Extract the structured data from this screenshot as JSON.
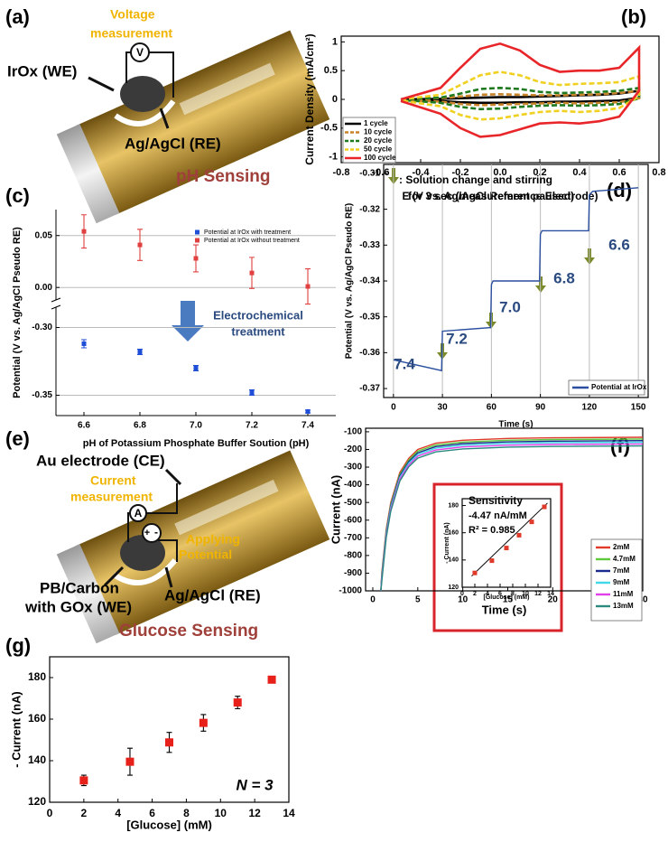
{
  "illustrations": [
    {
      "panel_label": "(a)",
      "measurement": [
        "Voltage",
        "measurement"
      ],
      "meter": "V",
      "working_electrode": "IrOx (WE)",
      "reference_electrode": "Ag/AgCl (RE)",
      "caption": "pH Sensing"
    },
    {
      "panel_label": "(e)",
      "counter_electrode": "Au electrode (CE)",
      "measurement": [
        "Current",
        "measurement"
      ],
      "meter": "A",
      "source": [
        "+",
        "-"
      ],
      "potential": [
        "Applying",
        "Potential"
      ],
      "working_electrode": [
        "PB/Carbon",
        "with GOx (WE)"
      ],
      "reference_electrode": "Ag/AgCl (RE)",
      "caption": "Glucose Sensing"
    }
  ],
  "chart_data": [
    {
      "panel_label": "(b)",
      "type": "line",
      "xlabel": "E (V vs. Ag/AgCl Reference Electrode)",
      "ylabel": "Current Density (mA/cm²)",
      "xlim": [
        -0.8,
        0.8
      ],
      "ylim": [
        -1.1,
        1.1
      ],
      "xticks": [
        -0.8,
        -0.6,
        -0.4,
        -0.2,
        {
          "value": 0,
          "label": "0.0"
        },
        0.2,
        0.4,
        0.6,
        0.8
      ],
      "yticks": [
        -1,
        -0.5,
        0,
        0.5,
        1
      ],
      "legend": "lower left",
      "x": [
        -0.5,
        -0.3,
        -0.2,
        -0.1,
        0,
        0.1,
        0.2,
        0.3,
        0.4,
        0.5,
        0.6,
        0.7,
        0.7,
        0.6,
        0.5,
        0.4,
        0.3,
        0.2,
        0.1,
        0,
        -0.1,
        -0.2,
        -0.3,
        -0.5
      ],
      "series": [
        {
          "name": "1 cycle",
          "color": "#000000",
          "dash": false,
          "values": [
            0,
            0.01,
            0.02,
            0.03,
            0.04,
            0.04,
            0.05,
            0.06,
            0.07,
            0.08,
            0.1,
            0.15,
            0.03,
            -0.02,
            -0.03,
            -0.04,
            -0.04,
            -0.05,
            -0.05,
            -0.06,
            -0.06,
            -0.05,
            -0.03,
            -0.01
          ]
        },
        {
          "name": "10 cycle",
          "color": "#c8842a",
          "dash": true,
          "values": [
            0,
            0.02,
            0.05,
            0.08,
            0.09,
            0.08,
            0.07,
            0.07,
            0.08,
            0.09,
            0.11,
            0.15,
            0.02,
            -0.05,
            -0.06,
            -0.07,
            -0.06,
            -0.07,
            -0.08,
            -0.09,
            -0.1,
            -0.08,
            -0.04,
            -0.01
          ]
        },
        {
          "name": "20 cycle",
          "color": "#1f7a1f",
          "dash": true,
          "values": [
            0,
            0.03,
            0.1,
            0.18,
            0.2,
            0.18,
            0.13,
            0.11,
            0.12,
            0.13,
            0.15,
            0.2,
            0.02,
            -0.08,
            -0.1,
            -0.11,
            -0.1,
            -0.11,
            -0.13,
            -0.16,
            -0.17,
            -0.13,
            -0.06,
            -0.01
          ]
        },
        {
          "name": "50 cycle",
          "color": "#f0d020",
          "dash": true,
          "values": [
            0,
            0.08,
            0.25,
            0.42,
            0.48,
            0.42,
            0.3,
            0.25,
            0.27,
            0.28,
            0.3,
            0.4,
            0.05,
            -0.15,
            -0.2,
            -0.22,
            -0.2,
            -0.22,
            -0.27,
            -0.33,
            -0.35,
            -0.27,
            -0.12,
            -0.02
          ]
        },
        {
          "name": "100 cycle",
          "color": "#e8262a",
          "dash": false,
          "values": [
            0,
            0.2,
            0.55,
            0.88,
            0.97,
            0.85,
            0.6,
            0.48,
            0.5,
            0.5,
            0.55,
            0.9,
            0.15,
            -0.3,
            -0.38,
            -0.42,
            -0.4,
            -0.42,
            -0.52,
            -0.62,
            -0.65,
            -0.5,
            -0.25,
            -0.03
          ]
        }
      ]
    },
    {
      "panel_label": "(c)",
      "type": "errorbar",
      "xlabel": "pH of Potassium Phosphate Buffer Soution (pH)",
      "ylabel": "Potential (V vs. Ag/AgCl Pseudo RE)",
      "xlim": [
        6.5,
        7.5
      ],
      "xticks": [
        6.6,
        6.8,
        {
          "value": 7,
          "label": "7.0"
        },
        7.2,
        7.4
      ],
      "ylim": [
        -0.365,
        -0.285
      ],
      "yticks": [
        -0.35,
        {
          "value": -0.3,
          "label": "-0.30"
        }
      ],
      "ylim_top": [
        -0.012,
        0.075
      ],
      "yticks_top": [
        {
          "value": 0,
          "label": "0.00"
        },
        0.05
      ],
      "grid": true,
      "legend": "upper right",
      "x": [
        6.6,
        6.8,
        7,
        7.2,
        7.4
      ],
      "series": [
        {
          "name": "Potential at IrOx with treatment",
          "color": "#1f4fd6",
          "values": [
            -0.312,
            -0.318,
            -0.33,
            -0.348,
            -0.362
          ],
          "errors": [
            0.003,
            0.002,
            0.002,
            0.002,
            0.001
          ]
        },
        {
          "name": "Potential at IrOx without treatment",
          "color": "#e04040",
          "values": [
            0.054,
            0.041,
            0.028,
            0.014,
            0.001
          ],
          "errors": [
            0.016,
            0.015,
            0.013,
            0.015,
            0.017
          ]
        }
      ],
      "annotation": [
        "Electrochemical",
        "treatment"
      ]
    },
    {
      "panel_label": "(d)",
      "type": "line",
      "xlabel": "Time (s)",
      "ylabel": "Potential (V vs. Ag/AgCl Pseudo RE)",
      "xlim": [
        -6,
        156
      ],
      "ylim": [
        -0.3725,
        -0.3075
      ],
      "xticks": [
        0,
        30,
        60,
        90,
        120,
        150
      ],
      "yticks": [
        -0.37,
        -0.36,
        -0.35,
        -0.34,
        -0.33,
        -0.32,
        -0.31
      ],
      "grid": "x",
      "legend": "lower right",
      "x": [
        0,
        29.5,
        30,
        59.5,
        60,
        61,
        89.5,
        90,
        91,
        119.5,
        120,
        122,
        150
      ],
      "series": [
        {
          "name": "Potential at IrOx",
          "color": "#2b4fa0",
          "dash": false,
          "values": [
            -0.362,
            -0.365,
            -0.354,
            -0.353,
            -0.341,
            -0.34,
            -0.34,
            -0.327,
            -0.326,
            -0.326,
            -0.316,
            -0.315,
            -0.314
          ]
        }
      ],
      "annotation": {
        "note": [
          ": Solution change and stirring",
          "for 3 sec (measurement paused)"
        ],
        "steps": [
          "7.4",
          "7.2",
          "7.0",
          "6.8",
          "6.6"
        ]
      }
    },
    {
      "panel_label": "(f)",
      "type": "line",
      "xlabel": "Time (s)",
      "ylabel": "Current (nA)",
      "xlim": [
        -0.8,
        30
      ],
      "ylim": [
        -1000,
        -80
      ],
      "xticks": [
        0,
        5,
        10,
        15,
        20,
        25,
        30
      ],
      "yticks": [
        -1000,
        -900,
        -800,
        -700,
        -600,
        -500,
        -400,
        -300,
        -200,
        -100
      ],
      "legend": "right",
      "x": [
        0.9,
        1,
        1.5,
        2,
        3,
        4,
        5,
        7,
        10,
        15,
        20,
        30
      ],
      "series": [
        {
          "name": "2mM",
          "color": "#e03a2a",
          "dash": false,
          "values": [
            -1000,
            -900,
            -650,
            -500,
            -330,
            -250,
            -200,
            -165,
            -148,
            -138,
            -134,
            -131
          ]
        },
        {
          "name": "4.7mM",
          "color": "#5fc83c",
          "dash": false,
          "values": [
            -1000,
            -910,
            -660,
            -510,
            -340,
            -260,
            -210,
            -175,
            -158,
            -148,
            -144,
            -141
          ]
        },
        {
          "name": "7mM",
          "color": "#1a2a8a",
          "dash": false,
          "values": [
            -1000,
            -919,
            -669,
            -519,
            -349,
            -269,
            -219,
            -184,
            -167,
            -157,
            -153,
            -150
          ]
        },
        {
          "name": "9mM",
          "color": "#40d8e8",
          "dash": false,
          "values": [
            -1000,
            -928,
            -678,
            -528,
            -358,
            -278,
            -228,
            -193,
            -176,
            -166,
            -162,
            -159
          ]
        },
        {
          "name": "11mM",
          "color": "#e040e8",
          "dash": false,
          "values": [
            -1000,
            -938,
            -688,
            -538,
            -368,
            -288,
            -238,
            -203,
            -186,
            -176,
            -172,
            -169
          ]
        },
        {
          "name": "13mM",
          "color": "#2a8a80",
          "dash": false,
          "values": [
            -1000,
            -949,
            -699,
            -549,
            -379,
            -299,
            -249,
            -214,
            -197,
            -187,
            -183,
            -180
          ]
        }
      ]
    },
    {
      "type": "scatter",
      "xlabel": "[Glucose] (mM)",
      "ylabel": "- Current (nA)",
      "xlim": [
        0,
        14
      ],
      "ylim": [
        120,
        185
      ],
      "xticks": [
        0,
        2,
        4,
        6,
        8,
        10,
        12,
        14
      ],
      "yticks": [
        120,
        140,
        160,
        180
      ],
      "color": "#e03a2a",
      "x": [
        2,
        4.7,
        7,
        9,
        11,
        13
      ],
      "values": [
        130.5,
        139.5,
        148.8,
        158.2,
        168,
        179
      ],
      "fit": {
        "x": [
          1.5,
          13.5
        ],
        "values": [
          128.2,
          181.8
        ]
      },
      "annotation": [
        "Sensitivity",
        "-4.47 nA/mM",
        "R² = 0.985"
      ]
    },
    {
      "panel_label": "(g)",
      "type": "errorbar",
      "xlabel": "[Glucose] (mM)",
      "ylabel": "- Current (nA)",
      "xlim": [
        0,
        14
      ],
      "ylim": [
        120,
        190
      ],
      "xticks": [
        0,
        2,
        4,
        6,
        8,
        10,
        12,
        14
      ],
      "yticks": [
        120,
        140,
        160,
        180
      ],
      "color": "#e8201a",
      "x": [
        2,
        4.7,
        7,
        9,
        11,
        13
      ],
      "values": [
        130.5,
        139.5,
        148.8,
        158.2,
        168,
        179
      ],
      "errors": [
        2.5,
        6.5,
        4.8,
        4,
        3,
        1
      ],
      "annotation": "N = 3"
    }
  ]
}
